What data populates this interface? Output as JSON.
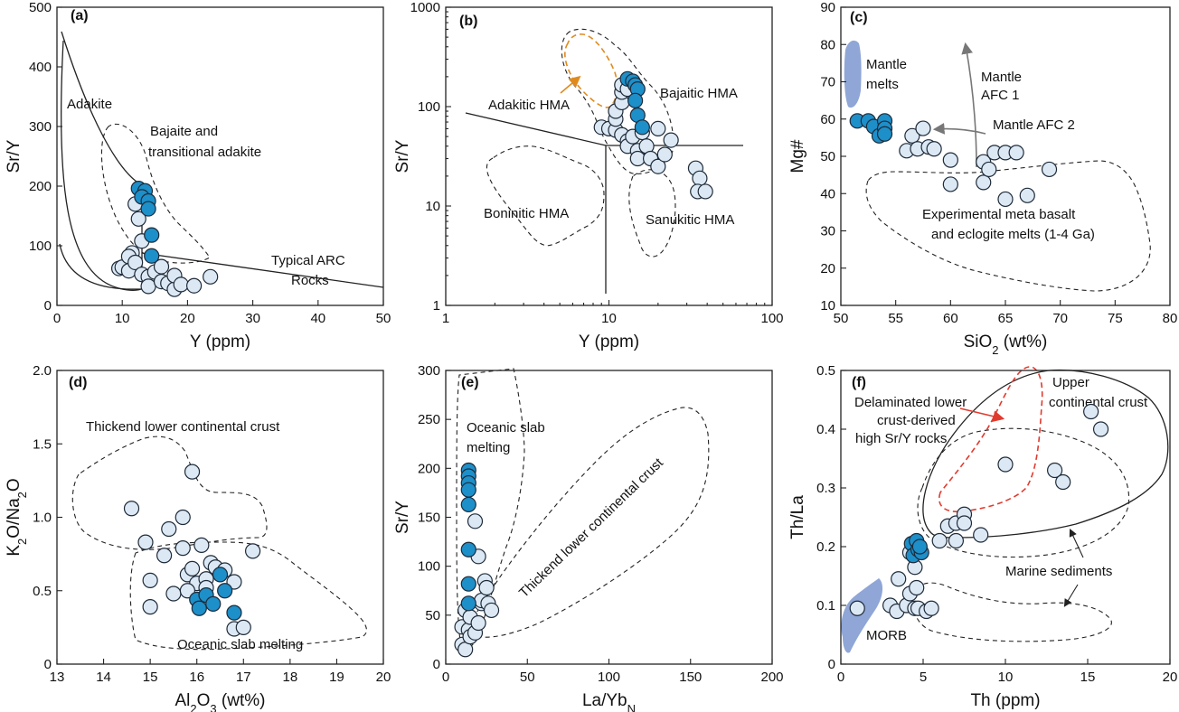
{
  "colors": {
    "light_point": "#dce9f5",
    "dark_point": "#1d8fc9",
    "mantle_melt_fill": "#8fa6d6",
    "orange_arrow": "#e08a1e",
    "red_arrow": "#e03a2e",
    "gray_arrow": "#777777"
  },
  "chart_data": [
    {
      "panel": "(a)",
      "type": "scatter",
      "xlabel": "Y (ppm)",
      "ylabel": "Sr/Y",
      "xlim": [
        0,
        50
      ],
      "ylim": [
        0,
        500
      ],
      "x_ticks": [
        "0",
        "10",
        "20",
        "30",
        "40",
        "50"
      ],
      "y_ticks": [
        "0",
        "100",
        "200",
        "300",
        "400",
        "500"
      ],
      "annotations": [
        "Adakite",
        "Bajaite and",
        "transitional adakite",
        "Typical ARC",
        "Rocks"
      ],
      "series": [
        {
          "values": [
            [
              9.5,
              62
            ],
            [
              10,
              64
            ],
            [
              11,
              58
            ],
            [
              11.5,
              88
            ],
            [
              11,
              82
            ],
            [
              12,
              72
            ],
            [
              12.5,
              145
            ],
            [
              12,
              170
            ],
            [
              13,
              108
            ],
            [
              13,
              52
            ],
            [
              14,
              48
            ],
            [
              14,
              32
            ],
            [
              15,
              56
            ],
            [
              16,
              65
            ],
            [
              16,
              40
            ],
            [
              17,
              37
            ],
            [
              18,
              27
            ],
            [
              18,
              50
            ],
            [
              19,
              35
            ],
            [
              21,
              33
            ],
            [
              23.5,
              48
            ]
          ]
        },
        {
          "values": [
            [
              12.5,
              196
            ],
            [
              13.5,
              192
            ],
            [
              13,
              182
            ],
            [
              14,
              175
            ],
            [
              14,
              162
            ],
            [
              14.5,
              118
            ],
            [
              14.5,
              83
            ]
          ]
        }
      ]
    },
    {
      "panel": "(b)",
      "type": "scatter",
      "xlabel": "Y (ppm)",
      "ylabel": "Sr/Y",
      "xscale": "log",
      "yscale": "log",
      "xlim": [
        1,
        100
      ],
      "ylim": [
        1,
        1000
      ],
      "x_ticks": [
        "1",
        "10",
        "100"
      ],
      "y_ticks": [
        "1",
        "10",
        "100",
        "1000"
      ],
      "annotations": [
        "Adakitic HMA",
        "Bajaitic HMA",
        "Boninitic HMA",
        "Sanukitic HMA"
      ],
      "series": [
        {
          "values": [
            [
              9,
              62
            ],
            [
              10,
              60
            ],
            [
              11,
              58
            ],
            [
              11,
              75
            ],
            [
              11,
              90
            ],
            [
              12,
              110
            ],
            [
              12,
              140
            ],
            [
              12,
              52
            ],
            [
              13,
              45
            ],
            [
              13,
              40
            ],
            [
              14,
              50
            ],
            [
              15,
              36
            ],
            [
              15,
              30
            ],
            [
              16,
              55
            ],
            [
              17,
              40
            ],
            [
              18,
              30
            ],
            [
              20,
              25
            ],
            [
              20,
              60
            ],
            [
              22,
              33
            ],
            [
              24,
              46
            ],
            [
              34,
              24
            ],
            [
              36,
              19
            ],
            [
              35,
              14
            ],
            [
              39,
              14
            ],
            [
              12,
              165
            ],
            [
              13,
              150
            ]
          ]
        },
        {
          "values": [
            [
              13,
              190
            ],
            [
              14,
              180
            ],
            [
              14.5,
              165
            ],
            [
              15,
              150
            ],
            [
              14.5,
              115
            ],
            [
              15,
              82
            ],
            [
              16,
              62
            ]
          ]
        }
      ]
    },
    {
      "panel": "(c)",
      "type": "scatter",
      "xlabel": "SiO2 (wt%)",
      "ylabel": "Mg#",
      "xlim": [
        50,
        80
      ],
      "ylim": [
        10,
        90
      ],
      "x_ticks": [
        "50",
        "55",
        "60",
        "65",
        "70",
        "75",
        "80"
      ],
      "y_ticks": [
        "10",
        "20",
        "30",
        "40",
        "50",
        "60",
        "70",
        "80",
        "90"
      ],
      "annotations": [
        "Mantle",
        "melts",
        "Mantle",
        "AFC 1",
        "Mantle AFC 2",
        "Experimental meta basalt",
        "and eclogite melts (1-4 Ga)"
      ],
      "series": [
        {
          "values": [
            [
              56,
              51.5
            ],
            [
              56.5,
              55.5
            ],
            [
              57,
              52
            ],
            [
              57.5,
              57.5
            ],
            [
              58,
              52.5
            ],
            [
              58.5,
              52
            ],
            [
              60,
              49
            ],
            [
              60,
              42.5
            ],
            [
              63,
              48.5
            ],
            [
              63,
              43
            ],
            [
              63.5,
              46.5
            ],
            [
              64,
              51
            ],
            [
              65,
              51
            ],
            [
              66,
              51
            ],
            [
              65,
              38.5
            ],
            [
              67,
              39.5
            ],
            [
              69,
              46.5
            ]
          ]
        },
        {
          "values": [
            [
              51.5,
              59.5
            ],
            [
              52.5,
              59.5
            ],
            [
              53,
              58
            ],
            [
              53.5,
              55.5
            ],
            [
              54,
              59.5
            ],
            [
              54,
              57.5
            ],
            [
              54,
              56
            ]
          ]
        }
      ]
    },
    {
      "panel": "(d)",
      "type": "scatter",
      "xlabel": "Al2O3 (wt%)",
      "ylabel": "K2O/Na2O",
      "xlim": [
        13,
        20
      ],
      "ylim": [
        0,
        2.0
      ],
      "x_ticks": [
        "13",
        "14",
        "15",
        "16",
        "17",
        "18",
        "19",
        "20"
      ],
      "y_ticks": [
        "0",
        "0.5",
        "1.0",
        "1.5",
        "2.0"
      ],
      "annotations": [
        "Thickend lower continental crust",
        "Oceanic slab melting"
      ],
      "series": [
        {
          "values": [
            [
              14.6,
              1.06
            ],
            [
              14.9,
              0.83
            ],
            [
              15,
              0.57
            ],
            [
              15,
              0.39
            ],
            [
              15.4,
              0.92
            ],
            [
              15.3,
              0.74
            ],
            [
              15.5,
              0.48
            ],
            [
              15.7,
              1.0
            ],
            [
              15.7,
              0.79
            ],
            [
              15.9,
              1.31
            ],
            [
              15.8,
              0.61
            ],
            [
              15.9,
              0.65
            ],
            [
              16,
              0.55
            ],
            [
              16.1,
              0.81
            ],
            [
              16.2,
              0.58
            ],
            [
              16.2,
              0.52
            ],
            [
              16.3,
              0.69
            ],
            [
              16.4,
              0.66
            ],
            [
              16.6,
              0.64
            ],
            [
              16.8,
              0.56
            ],
            [
              16.8,
              0.24
            ],
            [
              17,
              0.25
            ],
            [
              17.2,
              0.77
            ],
            [
              15.8,
              0.5
            ]
          ]
        },
        {
          "values": [
            [
              16,
              0.44
            ],
            [
              16.05,
              0.38
            ],
            [
              16.2,
              0.47
            ],
            [
              16.35,
              0.41
            ],
            [
              16.5,
              0.61
            ],
            [
              16.6,
              0.5
            ],
            [
              16.8,
              0.35
            ]
          ]
        }
      ]
    },
    {
      "panel": "(e)",
      "type": "scatter",
      "xlabel": "La/YbN",
      "ylabel": "Sr/Y",
      "xlim": [
        0,
        200
      ],
      "ylim": [
        0,
        300
      ],
      "x_ticks": [
        "0",
        "50",
        "100",
        "150",
        "200"
      ],
      "y_ticks": [
        "0",
        "50",
        "100",
        "150",
        "200",
        "250",
        "300"
      ],
      "annotations": [
        "Oceanic slab",
        "melting",
        "Thickend lower continental crust"
      ],
      "series": [
        {
          "values": [
            [
              10,
              38
            ],
            [
              10,
              20
            ],
            [
              12,
              15
            ],
            [
              12,
              55
            ],
            [
              14,
              35
            ],
            [
              15,
              48
            ],
            [
              15,
              28
            ],
            [
              18,
              32
            ],
            [
              18,
              146
            ],
            [
              20,
              110
            ],
            [
              20,
              42
            ],
            [
              22,
              62
            ],
            [
              22,
              65
            ],
            [
              24,
              85
            ],
            [
              25,
              78
            ],
            [
              26,
              62
            ],
            [
              28,
              55
            ]
          ]
        },
        {
          "values": [
            [
              14,
              198
            ],
            [
              14,
              192
            ],
            [
              14,
              185
            ],
            [
              14,
              178
            ],
            [
              14,
              163
            ],
            [
              14,
              117
            ],
            [
              14,
              82
            ],
            [
              14,
              62
            ]
          ]
        }
      ]
    },
    {
      "panel": "(f)",
      "type": "scatter",
      "xlabel": "Th (ppm)",
      "ylabel": "Th/La",
      "xlim": [
        0,
        20
      ],
      "ylim": [
        0,
        0.5
      ],
      "x_ticks": [
        "0",
        "5",
        "10",
        "15",
        "20"
      ],
      "y_ticks": [
        "0",
        "0.1",
        "0.2",
        "0.3",
        "0.4",
        "0.5"
      ],
      "annotations": [
        "Delaminated lower",
        "crust-derived",
        "high Sr/Y rocks",
        "Upper",
        "continental crust",
        "Marine sediments",
        "MORB"
      ],
      "series": [
        {
          "values": [
            [
              1,
              0.095
            ],
            [
              3,
              0.1
            ],
            [
              3.4,
              0.09
            ],
            [
              3.5,
              0.145
            ],
            [
              4,
              0.1
            ],
            [
              4.2,
              0.12
            ],
            [
              4.5,
              0.095
            ],
            [
              4.5,
              0.165
            ],
            [
              4.6,
              0.13
            ],
            [
              4.7,
              0.095
            ],
            [
              5.2,
              0.09
            ],
            [
              5.5,
              0.095
            ],
            [
              6,
              0.21
            ],
            [
              6.5,
              0.235
            ],
            [
              7,
              0.24
            ],
            [
              7,
              0.21
            ],
            [
              7.5,
              0.255
            ],
            [
              7.5,
              0.24
            ],
            [
              8.5,
              0.22
            ],
            [
              10,
              0.34
            ],
            [
              13,
              0.33
            ],
            [
              13.5,
              0.31
            ],
            [
              15.2,
              0.43
            ],
            [
              15.8,
              0.4
            ],
            [
              4.2,
              0.19
            ]
          ]
        },
        {
          "values": [
            [
              4.3,
              0.205
            ],
            [
              4.6,
              0.21
            ],
            [
              4.4,
              0.185
            ],
            [
              4.7,
              0.195
            ],
            [
              4.9,
              0.19
            ],
            [
              4.8,
              0.2
            ]
          ]
        }
      ]
    }
  ]
}
